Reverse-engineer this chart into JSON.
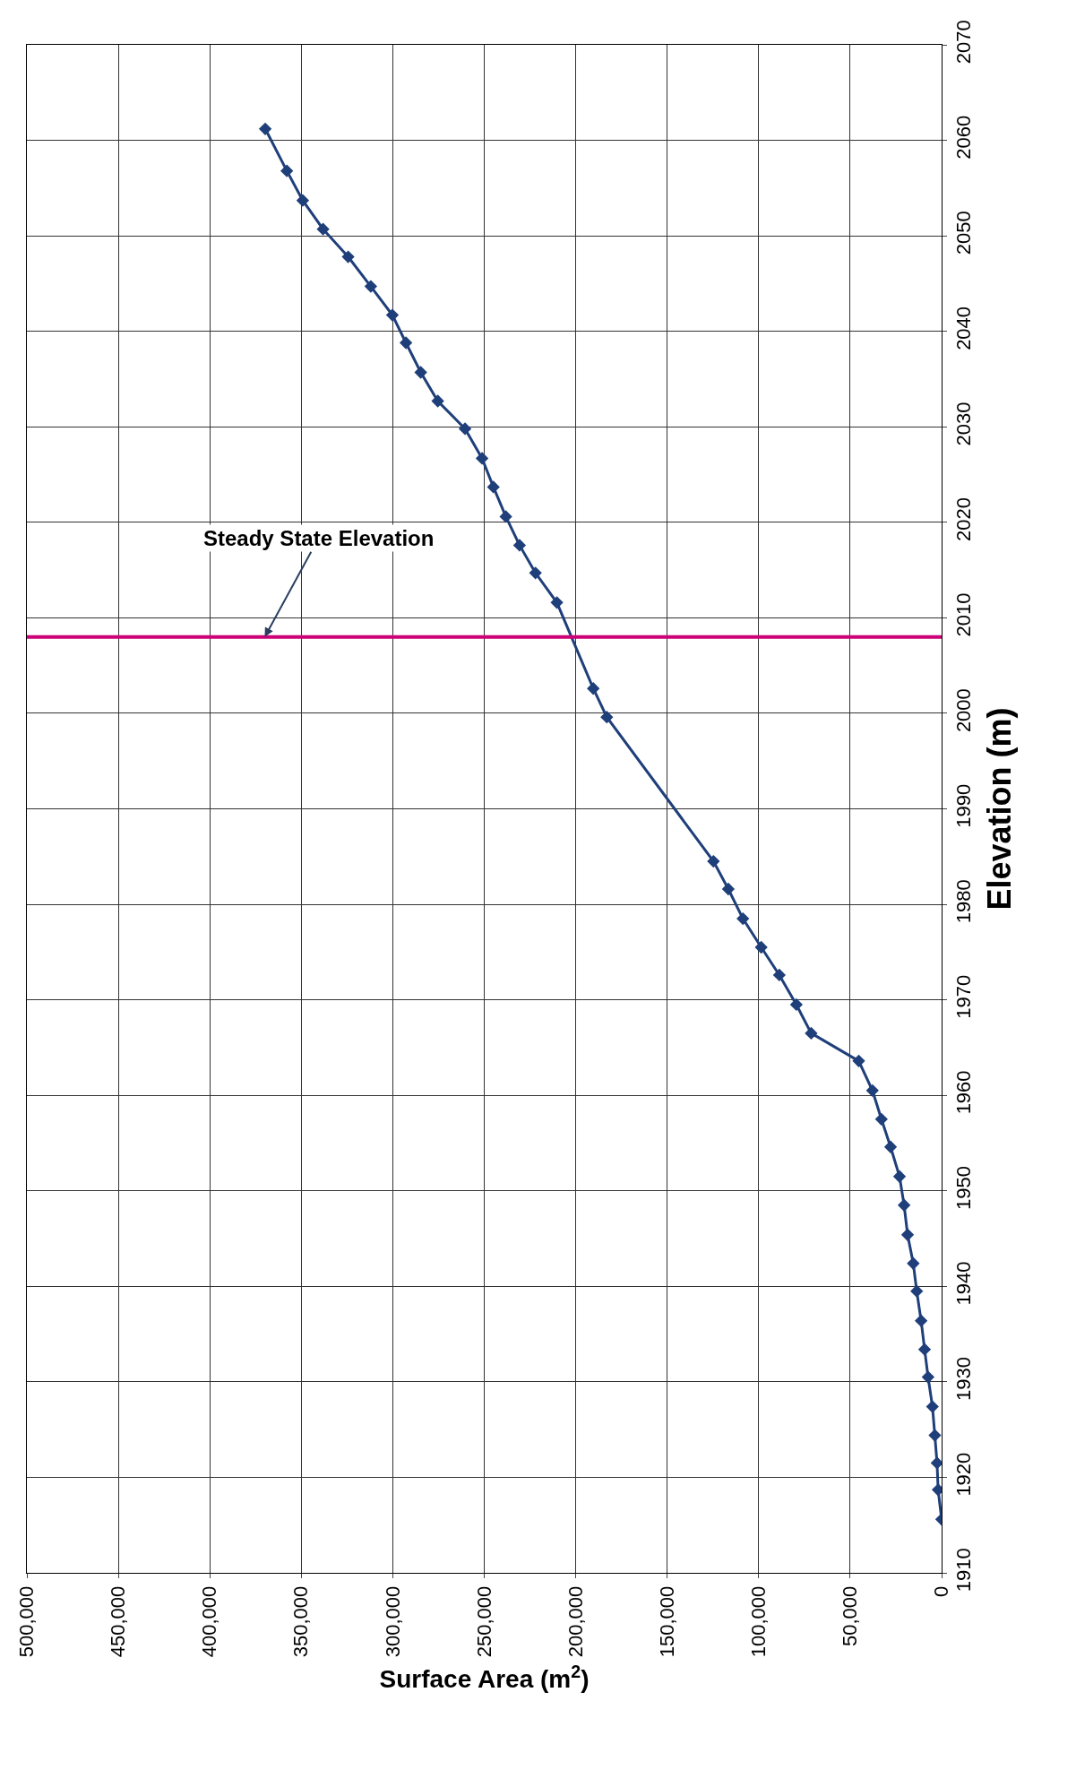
{
  "chart_data": {
    "type": "line",
    "xlabel": "Surface Area (m$^{2}$)",
    "ylabel": "Elevation (m)",
    "xlim": [
      500000,
      0
    ],
    "xticks": [
      {
        "value": 500000,
        "label": "500,000"
      },
      {
        "value": 450000,
        "label": "450,000"
      },
      {
        "value": 400000,
        "label": "400,000"
      },
      {
        "value": 350000,
        "label": "350,000"
      },
      {
        "value": 300000,
        "label": "300,000"
      },
      {
        "value": 250000,
        "label": "250,000"
      },
      {
        "value": 200000,
        "label": "200,000"
      },
      {
        "value": 150000,
        "label": "150,000"
      },
      {
        "value": 100000,
        "label": "100,000"
      },
      {
        "value": 50000,
        "label": "50,000"
      },
      0
    ],
    "ylim": [
      1910,
      2070
    ],
    "yticks": [
      1910,
      1920,
      1930,
      1940,
      1950,
      1960,
      1970,
      1980,
      1990,
      2000,
      2010,
      2020,
      2030,
      2040,
      2050,
      2060,
      2070
    ],
    "grid": true,
    "marker": "diamond",
    "line_style": "solid",
    "series": [
      {
        "color": "#1f3f7a",
        "x": [
          0,
          1900,
          2500,
          3700,
          5000,
          7400,
          9300,
          11200,
          13600,
          15500,
          18600,
          20500,
          23000,
          27900,
          32900,
          37800,
          45300,
          71300,
          79400,
          88700,
          98600,
          108600,
          116600,
          124700,
          183000,
          190400,
          210300,
          222000,
          230700,
          238200,
          245000,
          251200,
          260500,
          275400,
          284700,
          292800,
          300200,
          312000,
          324400,
          338100,
          349200,
          357900,
          369700
        ],
        "values": [
          1915.6,
          1918.7,
          1921.5,
          1924.4,
          1927.4,
          1930.5,
          1933.4,
          1936.4,
          1939.5,
          1942.4,
          1945.4,
          1948.5,
          1951.5,
          1954.6,
          1957.5,
          1960.5,
          1963.6,
          1966.5,
          1969.5,
          1972.6,
          1975.5,
          1978.5,
          1981.6,
          1984.5,
          1999.6,
          2002.6,
          2011.6,
          2014.7,
          2017.6,
          2020.6,
          2023.7,
          2026.7,
          2029.8,
          2032.7,
          2035.7,
          2038.8,
          2041.7,
          2044.7,
          2047.8,
          2050.7,
          2053.7,
          2056.8,
          2061.2
        ]
      }
    ],
    "ref_lines": [
      {
        "axis": "y",
        "value": 2008,
        "color": "#cc0077"
      }
    ],
    "annotations": [
      {
        "text": "Steady State Elevation",
        "x": 370000,
        "y": 2008
      }
    ]
  }
}
